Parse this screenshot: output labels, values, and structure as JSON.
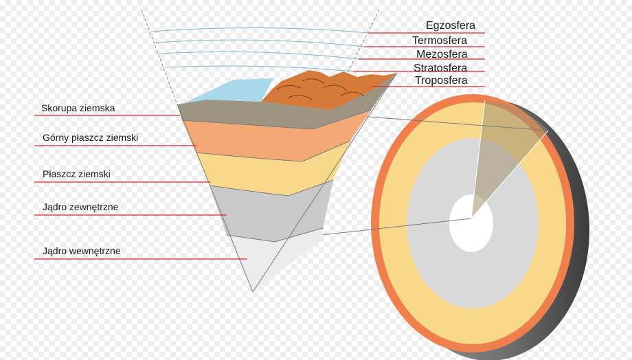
{
  "left_labels": [
    {
      "id": "skorupa",
      "text": "Skorupa ziemska"
    },
    {
      "id": "gorny",
      "text": "Górny płaszcz ziemski"
    },
    {
      "id": "plaszcz",
      "text": "Płaszcz ziemski"
    },
    {
      "id": "zewnetrzne",
      "text": "Jądro zewnętrzne"
    },
    {
      "id": "wewnetrzne",
      "text": "Jądro wewnętrzne"
    }
  ],
  "right_labels": [
    {
      "id": "egzosfera",
      "text": "Egzosfera"
    },
    {
      "id": "termosfera",
      "text": "Termosfera"
    },
    {
      "id": "mezosfera",
      "text": "Mezosfera"
    },
    {
      "id": "stratosfera",
      "text": "Stratosfera"
    },
    {
      "id": "troposfera",
      "text": "Troposfera"
    }
  ],
  "colors": {
    "ocean": "#a9d8ec",
    "crust": "#9e9482",
    "upper_mantle": "#f3a875",
    "mantle": "#f8d98c",
    "outer_core": "#c9c9c9",
    "inner_core": "#ececec",
    "mountain": "#d67a3a",
    "leader": "#d52b2b",
    "atmosphere_lines": "#7fb3d5"
  }
}
